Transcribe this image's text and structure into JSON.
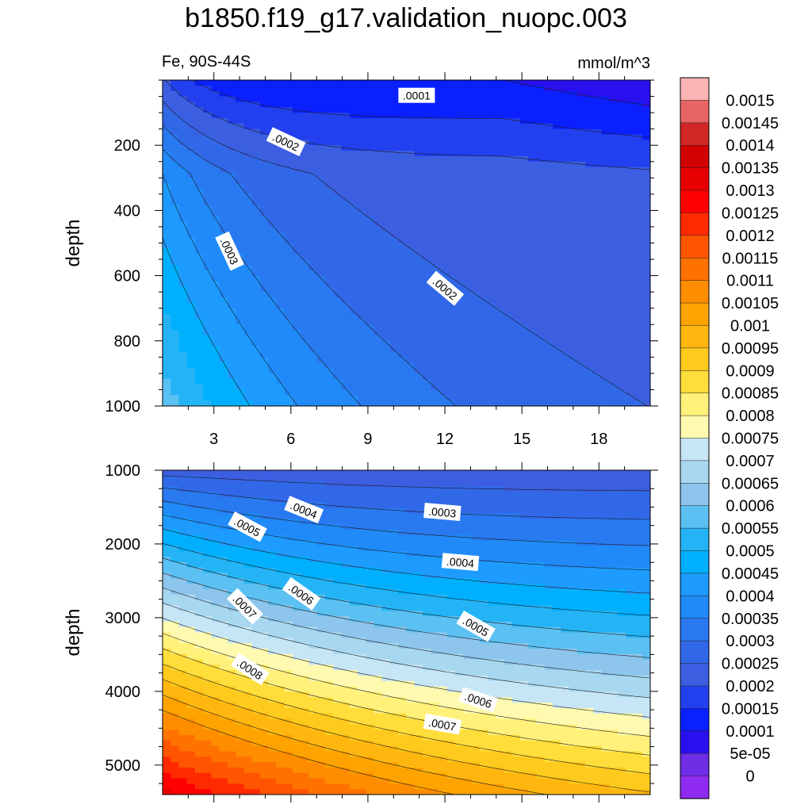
{
  "title": "b1850.f19_g17.validation_nuopc.003",
  "subtitle_left": "Fe, 90S-44S",
  "subtitle_right": "mmol/m^3",
  "colorbar": {
    "labels": [
      "0.0015",
      "0.00145",
      "0.0014",
      "0.00135",
      "0.0013",
      "0.00125",
      "0.0012",
      "0.00115",
      "0.0011",
      "0.00105",
      "0.001",
      "0.00095",
      "0.0009",
      "0.00085",
      "0.0008",
      "0.00075",
      "0.0007",
      "0.00065",
      "0.0006",
      "0.00055",
      "0.0005",
      "0.00045",
      "0.0004",
      "0.00035",
      "0.0003",
      "0.00025",
      "0.0002",
      "0.00015",
      "0.0001",
      "5e-05",
      "0"
    ],
    "colors": [
      "#fcb3b3",
      "#e96464",
      "#d32626",
      "#d20000",
      "#e80000",
      "#ff0000",
      "#ff2a00",
      "#ff5500",
      "#ff7200",
      "#ff8d00",
      "#ffa300",
      "#ffb710",
      "#ffca1e",
      "#ffdd3a",
      "#fff17a",
      "#fffab0",
      "#c6e6f6",
      "#a8d8f0",
      "#8dc5ec",
      "#5bc0f2",
      "#24b4f5",
      "#00b0ff",
      "#1e9bff",
      "#208af8",
      "#2979f0",
      "#3168e8",
      "#3c5ee0",
      "#2340ee",
      "#0b20ff",
      "#2a10ee",
      "#6f2de6",
      "#8f2bf0"
    ]
  },
  "chart_data": [
    {
      "type": "contour",
      "panel": "top",
      "title": "Fe, 90S-44S",
      "units": "mmol/m^3",
      "xlabel": "",
      "ylabel": "depth",
      "xlim": [
        1,
        20
      ],
      "ylim": [
        1000,
        0
      ],
      "xticks": [
        "3",
        "6",
        "9",
        "12",
        "15",
        "18"
      ],
      "yticks": [
        "200",
        "400",
        "600",
        "800",
        "1000"
      ],
      "contour_labels": [
        ".0001",
        ".0002",
        ".0003",
        ".0002"
      ],
      "levels": [
        0.0001,
        0.00015,
        0.0002,
        0.00025,
        0.0003,
        0.00035,
        0.0004,
        0.00045
      ]
    },
    {
      "type": "contour",
      "panel": "bottom",
      "xlabel": "",
      "ylabel": "depth",
      "xlim": [
        1,
        20
      ],
      "ylim": [
        5400,
        1000
      ],
      "yticks": [
        "1000",
        "2000",
        "3000",
        "4000",
        "5000"
      ],
      "contour_labels": [
        ".0004",
        ".0003",
        ".0005",
        ".0004",
        ".0006",
        ".0007",
        ".0005",
        ".0008",
        ".0006",
        ".0007"
      ],
      "levels": [
        0.0002,
        0.00025,
        0.0003,
        0.00035,
        0.0004,
        0.00045,
        0.0005,
        0.00055,
        0.0006,
        0.00065,
        0.0007,
        0.00075,
        0.0008,
        0.00085,
        0.0009,
        0.00095,
        0.001,
        0.00105
      ]
    }
  ]
}
